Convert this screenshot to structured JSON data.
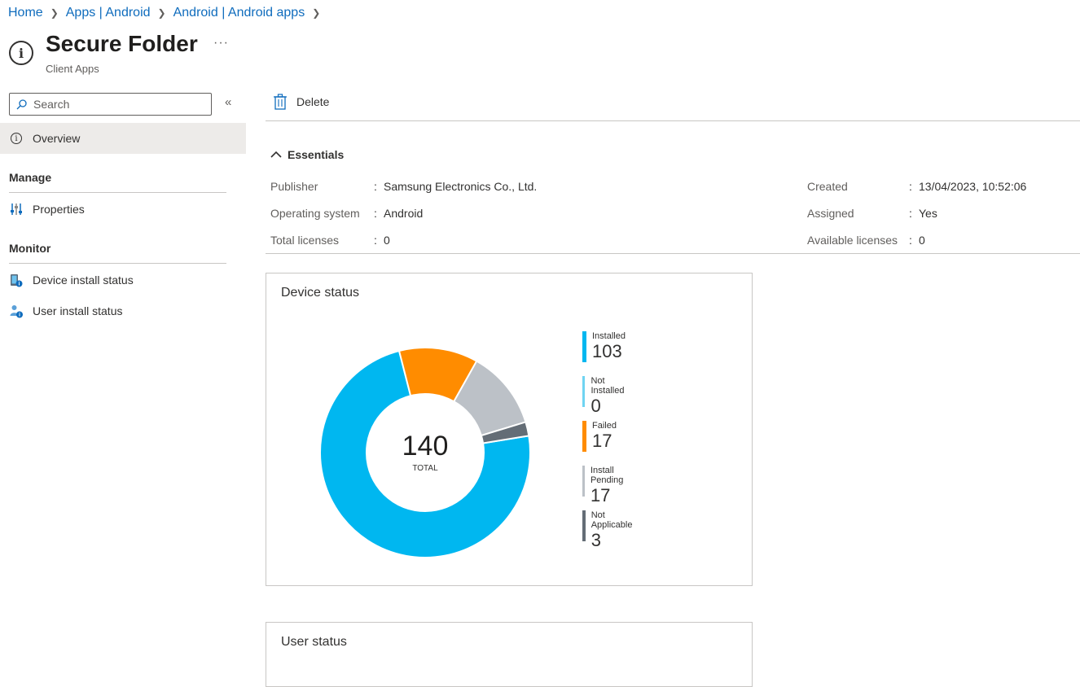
{
  "breadcrumb": [
    "Home",
    "Apps | Android",
    "Android | Android apps"
  ],
  "header": {
    "title": "Secure Folder",
    "subtitle": "Client Apps",
    "more": "···"
  },
  "sidebar": {
    "search_placeholder": "Search",
    "overview": "Overview",
    "manage_heading": "Manage",
    "properties": "Properties",
    "monitor_heading": "Monitor",
    "device_install_status": "Device install status",
    "user_install_status": "User install status"
  },
  "toolbar": {
    "delete_label": "Delete"
  },
  "essentials": {
    "heading": "Essentials",
    "left": [
      {
        "label": "Publisher",
        "value": "Samsung Electronics Co., Ltd."
      },
      {
        "label": "Operating system",
        "value": "Android"
      },
      {
        "label": "Total licenses",
        "value": "0"
      }
    ],
    "right": [
      {
        "label": "Created",
        "value": "13/04/2023, 10:52:06"
      },
      {
        "label": "Assigned",
        "value": "Yes"
      },
      {
        "label": "Available licenses",
        "value": "0"
      }
    ]
  },
  "device_status": {
    "title": "Device status",
    "total": "140",
    "total_label": "TOTAL"
  },
  "user_status": {
    "title": "User status"
  },
  "chart_data": {
    "type": "pie",
    "title": "Device status",
    "series": [
      {
        "name": "Installed",
        "value": 103,
        "color": "#00b7f0"
      },
      {
        "name": "Not Installed",
        "value": 0,
        "color": "#6fd4f2"
      },
      {
        "name": "Failed",
        "value": 17,
        "color": "#ff8c00"
      },
      {
        "name": "Install Pending",
        "value": 17,
        "color": "#bcc1c7"
      },
      {
        "name": "Not Applicable",
        "value": 3,
        "color": "#646d76"
      }
    ],
    "total": 140
  }
}
